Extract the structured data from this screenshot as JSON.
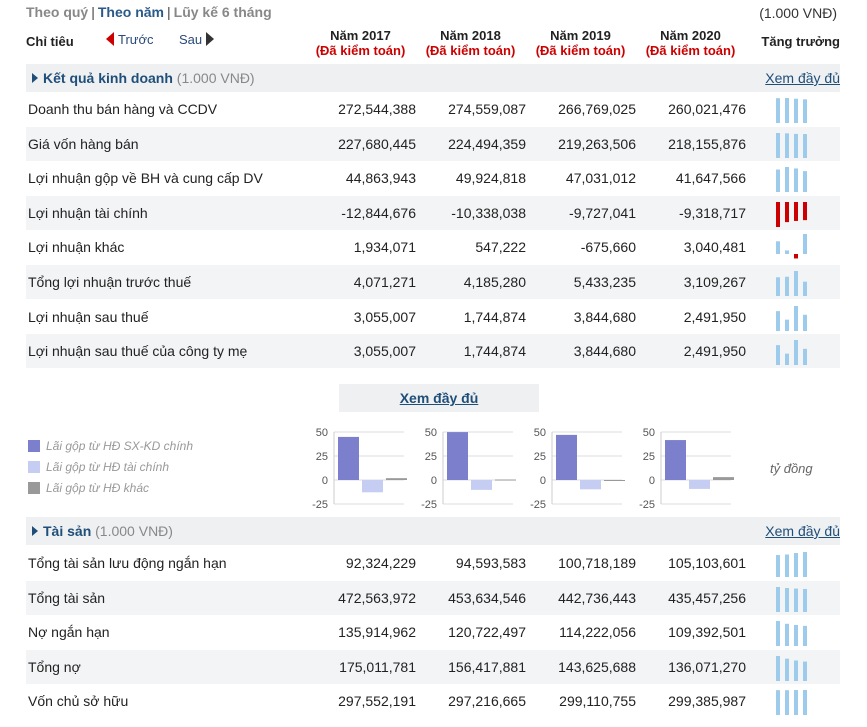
{
  "nav": {
    "quarter": "Theo quý",
    "year": "Theo năm",
    "ytd": "Lũy kế 6 tháng",
    "unit": "(1.000 VNĐ)"
  },
  "header": {
    "indicator": "Chỉ tiêu",
    "prev": "Trước",
    "next": "Sau",
    "growth": "Tăng trưởng",
    "years": [
      {
        "year": "Năm 2017",
        "audit": "(Đã kiểm toán)"
      },
      {
        "year": "Năm 2018",
        "audit": "(Đã kiểm toán)"
      },
      {
        "year": "Năm 2019",
        "audit": "(Đã kiểm toán)"
      },
      {
        "year": "Năm 2020",
        "audit": "(Đã kiểm toán)"
      }
    ]
  },
  "business": {
    "title": "Kết quả kinh doanh",
    "unit": "(1.000 VNĐ)",
    "more": "Xem đầy đủ",
    "rows": [
      {
        "label": "Doanh thu bán hàng và CCDV",
        "values": [
          "272,544,388",
          "274,559,087",
          "266,769,025",
          "260,021,476"
        ],
        "nums": [
          272544388,
          274559087,
          266769025,
          260021476
        ]
      },
      {
        "label": "Giá vốn hàng bán",
        "values": [
          "227,680,445",
          "224,494,359",
          "219,263,506",
          "218,155,876"
        ],
        "nums": [
          227680445,
          224494359,
          219263506,
          218155876
        ]
      },
      {
        "label": "Lợi nhuận gộp về BH và cung cấp DV",
        "values": [
          "44,863,943",
          "49,924,818",
          "47,031,012",
          "41,647,566"
        ],
        "nums": [
          44863943,
          49924818,
          47031012,
          41647566
        ]
      },
      {
        "label": "Lợi nhuận tài chính",
        "values": [
          "-12,844,676",
          "-10,338,038",
          "-9,727,041",
          "-9,318,717"
        ],
        "nums": [
          -12844676,
          -10338038,
          -9727041,
          -9318717
        ]
      },
      {
        "label": "Lợi nhuận khác",
        "values": [
          "1,934,071",
          "547,222",
          "-675,660",
          "3,040,481"
        ],
        "nums": [
          1934071,
          547222,
          -675660,
          3040481
        ]
      },
      {
        "label": "Tổng lợi nhuận trước thuế",
        "values": [
          "4,071,271",
          "4,185,280",
          "5,433,235",
          "3,109,267"
        ],
        "nums": [
          4071271,
          4185280,
          5433235,
          3109267
        ]
      },
      {
        "label": "Lợi nhuận sau thuế",
        "values": [
          "3,055,007",
          "1,744,874",
          "3,844,680",
          "2,491,950"
        ],
        "nums": [
          3055007,
          1744874,
          3844680,
          2491950
        ]
      },
      {
        "label": "Lợi nhuận sau thuế của công ty mẹ",
        "values": [
          "3,055,007",
          "1,744,874",
          "3,844,680",
          "2,491,950"
        ],
        "nums": [
          3055007,
          1744874,
          3844680,
          2491950
        ]
      }
    ]
  },
  "middle": {
    "more": "Xem đầy đủ",
    "legend": [
      {
        "label": "Lãi gộp từ HĐ SX-KD chính",
        "color": "#7b7fcc"
      },
      {
        "label": "Lãi gộp từ HĐ tài chính",
        "color": "#c5cdf2"
      },
      {
        "label": "Lãi gộp từ HĐ khác",
        "color": "#999999"
      }
    ],
    "unit": "tỷ đồng",
    "ticks": [
      "50",
      "25",
      "0",
      "-25"
    ]
  },
  "chart_data": {
    "type": "bar",
    "categories": [
      "Năm 2017",
      "Năm 2018",
      "Năm 2019",
      "Năm 2020"
    ],
    "series": [
      {
        "name": "Lãi gộp từ HĐ SX-KD chính",
        "values": [
          44.9,
          49.9,
          47.0,
          41.6
        ]
      },
      {
        "name": "Lãi gộp từ HĐ tài chính",
        "values": [
          -12.8,
          -10.3,
          -9.7,
          -9.3
        ]
      },
      {
        "name": "Lãi gộp từ HĐ khác",
        "values": [
          1.9,
          0.5,
          -0.7,
          3.0
        ]
      }
    ],
    "ylim": [
      -25,
      50
    ]
  },
  "assets": {
    "title": "Tài sản",
    "unit": "(1.000 VNĐ)",
    "more": "Xem đầy đủ",
    "rows": [
      {
        "label": "Tổng tài sản lưu động ngắn hạn",
        "values": [
          "92,324,229",
          "94,593,583",
          "100,718,189",
          "105,103,601"
        ],
        "nums": [
          92324229,
          94593583,
          100718189,
          105103601
        ]
      },
      {
        "label": "Tổng tài sản",
        "values": [
          "472,563,972",
          "453,634,546",
          "442,736,443",
          "435,457,256"
        ],
        "nums": [
          472563972,
          453634546,
          442736443,
          435457256
        ]
      },
      {
        "label": "Nợ ngắn hạn",
        "values": [
          "135,914,962",
          "120,722,497",
          "114,222,056",
          "109,392,501"
        ],
        "nums": [
          135914962,
          120722497,
          114222056,
          109392501
        ]
      },
      {
        "label": "Tổng nợ",
        "values": [
          "175,011,781",
          "156,417,881",
          "143,625,688",
          "136,071,270"
        ],
        "nums": [
          175011781,
          156417881,
          143625688,
          136071270
        ]
      },
      {
        "label": "Vốn chủ sở hữu",
        "values": [
          "297,552,191",
          "297,216,665",
          "299,110,755",
          "299,385,987"
        ],
        "nums": [
          297552191,
          297216665,
          299110755,
          299385987
        ]
      }
    ]
  }
}
